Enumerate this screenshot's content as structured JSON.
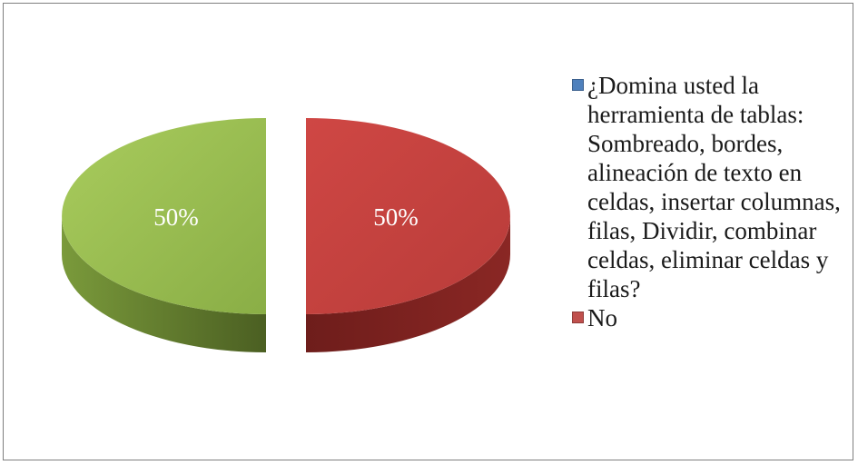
{
  "chart_data": {
    "type": "pie",
    "style": "3d-exploded",
    "slices": [
      {
        "name": "¿Domina usted la herramienta de tablas: Sombreado, bordes, alineación de texto en celdas, insertar columnas, filas, Dividir, combinar celdas, eliminar celdas y filas?",
        "value": 50,
        "label": "50%",
        "color": "#9bbb59",
        "legend_color": "#4f81bd"
      },
      {
        "name": "No",
        "value": 50,
        "label": "50%",
        "color": "#c0504d",
        "legend_color": "#c0504d"
      }
    ],
    "legend_position": "right"
  }
}
